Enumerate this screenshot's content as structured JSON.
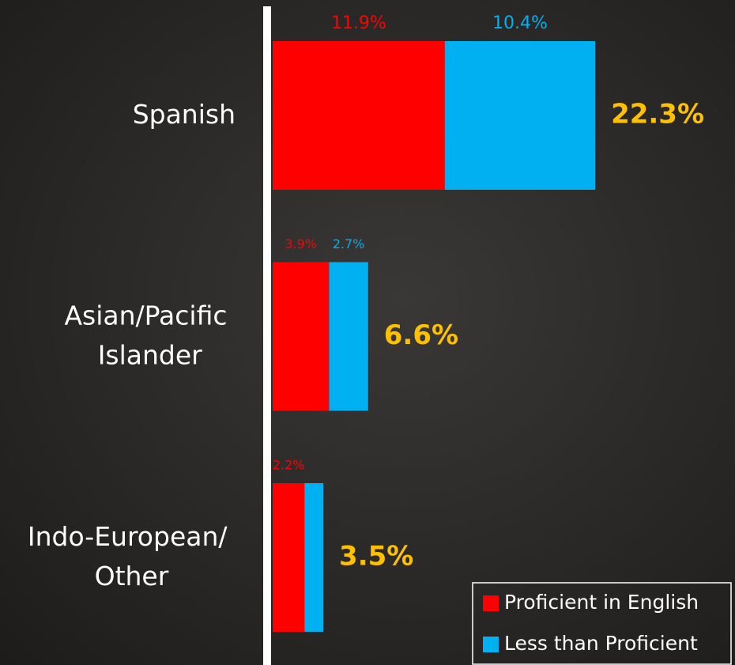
{
  "chart_data": {
    "type": "stacked-barh",
    "categories": [
      "Spanish",
      "Asian/Pacific Islander",
      "Indo-European/ Other"
    ],
    "series": [
      {
        "name": "Proficient in English",
        "color": "#ff0000",
        "values": [
          11.9,
          3.9,
          2.2
        ],
        "value_labels": [
          "11.9%",
          "3.9%",
          "2.2%"
        ]
      },
      {
        "name": "Less than Proficient",
        "color": "#00b0f0",
        "values": [
          10.4,
          2.7,
          1.3
        ],
        "value_labels": [
          "10.4%",
          "2.7%",
          null
        ]
      }
    ],
    "totals": [
      22.3,
      6.6,
      3.5
    ],
    "total_labels": [
      "22.3%",
      "6.6%",
      "3.5%"
    ],
    "total_color": "#ffc000",
    "legend": "bottom-right"
  }
}
